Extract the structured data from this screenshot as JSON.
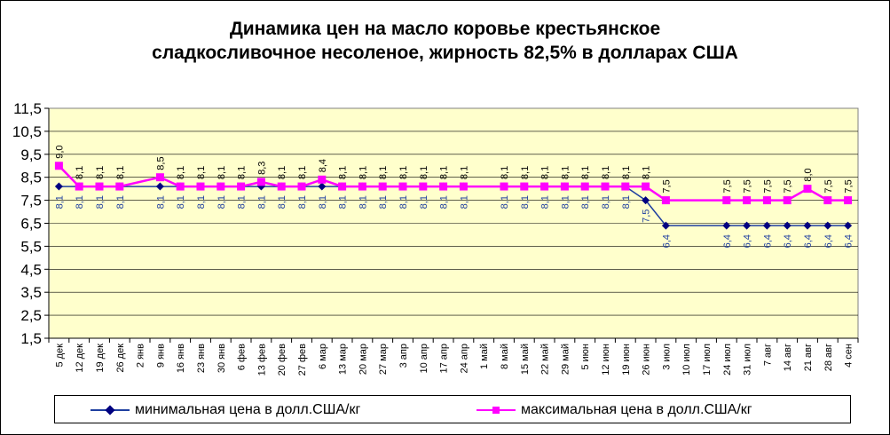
{
  "chart_data": {
    "type": "line",
    "title": "Динамика цен на масло коровье крестьянское сладкосливочное несоленое, жирность 82,5%  в долларах США",
    "title_lines": [
      "Динамика цен на масло коровье крестьянское",
      "сладкосливочное несоленое, жирность 82,5%  в долларах США"
    ],
    "categories": [
      "5 дек",
      "12 дек",
      "19 дек",
      "26 дек",
      "2 янв",
      "9 янв",
      "16 янв",
      "23 янв",
      "30 янв",
      "6 фев",
      "13 фев",
      "20 фев",
      "27 фев",
      "6 мар",
      "13 мар",
      "20 мар",
      "27 мар",
      "3 апр",
      "10 апр",
      "17 апр",
      "24 апр",
      "1 май",
      "8 май",
      "15 май",
      "22 май",
      "29 май",
      "5 июн",
      "12 июн",
      "19 июн",
      "26 июн",
      "3 июл",
      "10 июл",
      "17 июл",
      "24 июл",
      "31 июл",
      "7 авг",
      "14 авг",
      "21 авг",
      "28 авг",
      "4 сен"
    ],
    "y_ticks": [
      "1,5",
      "2,5",
      "3,5",
      "4,5",
      "5,5",
      "6,5",
      "7,5",
      "8,5",
      "9,5",
      "10,5",
      "11,5"
    ],
    "ylim": [
      1.5,
      11.5
    ],
    "series": [
      {
        "name": "минимальная  цена  в долл.США/кг",
        "color": "#1F3FA0",
        "marker": "diamond",
        "values": [
          8.1,
          8.1,
          8.1,
          8.1,
          null,
          8.1,
          8.1,
          8.1,
          8.1,
          8.1,
          8.1,
          8.1,
          8.1,
          8.1,
          8.1,
          8.1,
          8.1,
          8.1,
          8.1,
          8.1,
          8.1,
          null,
          8.1,
          8.1,
          8.1,
          8.1,
          8.1,
          8.1,
          8.1,
          7.5,
          6.4,
          null,
          null,
          6.4,
          6.4,
          6.4,
          6.4,
          6.4,
          6.4,
          6.4
        ],
        "labels": [
          "8,1",
          "8,1",
          "8,1",
          "8,1",
          null,
          "8,1",
          "8,1",
          "8,1",
          "8,1",
          "8,1",
          "8,1",
          "8,1",
          "8,1",
          "8,1",
          "8,1",
          "8,1",
          "8,1",
          "8,1",
          "8,1",
          "8,1",
          "8,1",
          null,
          "8,1",
          "8,1",
          "8,1",
          "8,1",
          "8,1",
          "8,1",
          "8,1",
          "7,5",
          "6,4",
          null,
          null,
          "6,4",
          "6,4",
          "6,4",
          "6,4",
          "6,4",
          "6,4",
          "6,4"
        ]
      },
      {
        "name": "максимальная  цена  в долл.США/кг",
        "color": "#FF00FF",
        "marker": "square",
        "values": [
          9.0,
          8.1,
          8.1,
          8.1,
          null,
          8.5,
          8.1,
          8.1,
          8.1,
          8.1,
          8.3,
          8.1,
          8.1,
          8.4,
          8.1,
          8.1,
          8.1,
          8.1,
          8.1,
          8.1,
          8.1,
          null,
          8.1,
          8.1,
          8.1,
          8.1,
          8.1,
          8.1,
          8.1,
          8.1,
          7.5,
          null,
          null,
          7.5,
          7.5,
          7.5,
          7.5,
          8.0,
          7.5,
          7.5
        ],
        "labels": [
          "9,0",
          "8,1",
          "8,1",
          "8,1",
          null,
          "8,5",
          "8,1",
          "8,1",
          "8,1",
          "8,1",
          "8,3",
          "8,1",
          "8,1",
          "8,4",
          "8,1",
          "8,1",
          "8,1",
          "8,1",
          "8,1",
          "8,1",
          "8,1",
          null,
          "8,1",
          "8,1",
          "8,1",
          "8,1",
          "8,1",
          "8,1",
          "8,1",
          "8,1",
          "7,5",
          null,
          null,
          "7,5",
          "7,5",
          "7,5",
          "7,5",
          "8,0",
          "7,5",
          "7,5"
        ]
      }
    ],
    "plot_background": "#FFFFCC",
    "grid": true,
    "legend_position": "bottom"
  }
}
